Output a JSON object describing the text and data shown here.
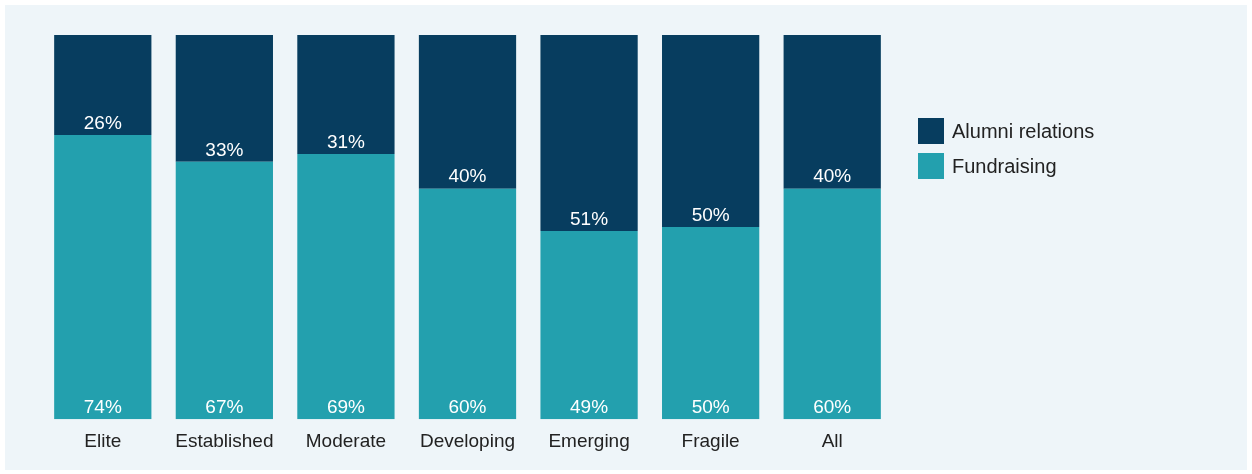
{
  "chart_data": {
    "type": "bar",
    "stacked": true,
    "categories": [
      "Elite",
      "Established",
      "Moderate",
      "Developing",
      "Emerging",
      "Fragile",
      "All"
    ],
    "series": [
      {
        "name": "Fundraising",
        "color": "#23a0ae",
        "values": [
          74,
          67,
          69,
          60,
          49,
          50,
          60
        ],
        "value_labels": [
          "74%",
          "67%",
          "69%",
          "60%",
          "49%",
          "50%",
          "60%"
        ]
      },
      {
        "name": "Alumni relations",
        "color": "#073d5f",
        "values": [
          26,
          33,
          31,
          40,
          51,
          50,
          40
        ],
        "value_labels": [
          "26%",
          "33%",
          "31%",
          "40%",
          "51%",
          "50%",
          "40%"
        ]
      }
    ],
    "tick_labels": "x",
    "legend": "right",
    "grid": false
  }
}
